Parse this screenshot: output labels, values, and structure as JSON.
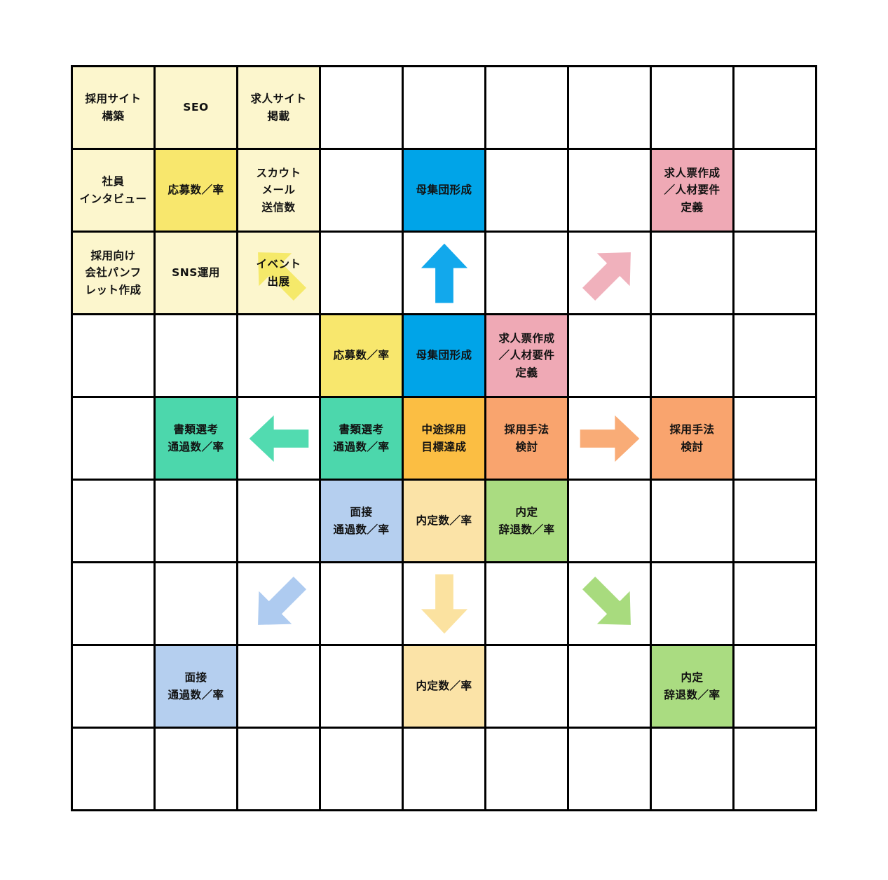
{
  "palette": {
    "background": "#FFFFFF",
    "grid_line": "#000000",
    "text": "#111111",
    "pale_yellow": "#FCF6CD",
    "yellow": "#F8E76D",
    "yellow_arrow": "#F5E96A",
    "blue": "#00A4E8",
    "blue_arrow": "#12A8EC",
    "pink": "#EFA9B5",
    "pink_arrow": "#F0B1BC",
    "teal": "#4CD7AC",
    "teal_arrow": "#52DBB0",
    "amber": "#FBBE43",
    "orange": "#F9A46E",
    "orange_arrow": "#F9AC77",
    "light_blue": "#B5CFEF",
    "light_blue_arrow": "#AECBF0",
    "cream": "#FBE3A7",
    "cream_arrow": "#FBE2A0",
    "light_green": "#AADC81",
    "light_green_arrow": "#A8DB7E"
  },
  "grid": {
    "rows": 9,
    "cols": 9,
    "cells": [
      {
        "r": 1,
        "c": 1,
        "label": "採用サイト\n構築",
        "fill": "pale_yellow"
      },
      {
        "r": 1,
        "c": 2,
        "label": "SEO",
        "fill": "pale_yellow"
      },
      {
        "r": 1,
        "c": 3,
        "label": "求人サイト\n掲載",
        "fill": "pale_yellow"
      },
      {
        "r": 2,
        "c": 1,
        "label": "社員\nインタビュー",
        "fill": "pale_yellow"
      },
      {
        "r": 2,
        "c": 2,
        "label": "応募数／率",
        "fill": "yellow"
      },
      {
        "r": 2,
        "c": 3,
        "label": "スカウト\nメール\n送信数",
        "fill": "pale_yellow"
      },
      {
        "r": 2,
        "c": 5,
        "label": "母集団形成",
        "fill": "blue"
      },
      {
        "r": 2,
        "c": 8,
        "label": "求人票作成\n／人材要件\n定義",
        "fill": "pink"
      },
      {
        "r": 3,
        "c": 1,
        "label": "採用向け\n会社パンフ\nレット作成",
        "fill": "pale_yellow"
      },
      {
        "r": 3,
        "c": 2,
        "label": "SNS運用",
        "fill": "pale_yellow"
      },
      {
        "r": 3,
        "c": 3,
        "label": "イベント\n出展",
        "fill": "pale_yellow",
        "arrow": {
          "dir": "up-left",
          "fill": "yellow_arrow"
        }
      },
      {
        "r": 3,
        "c": 5,
        "arrow": {
          "dir": "up",
          "fill": "blue_arrow"
        }
      },
      {
        "r": 3,
        "c": 7,
        "arrow": {
          "dir": "up-right",
          "fill": "pink_arrow"
        }
      },
      {
        "r": 4,
        "c": 4,
        "label": "応募数／率",
        "fill": "yellow"
      },
      {
        "r": 4,
        "c": 5,
        "label": "母集団形成",
        "fill": "blue"
      },
      {
        "r": 4,
        "c": 6,
        "label": "求人票作成\n／人材要件\n定義",
        "fill": "pink"
      },
      {
        "r": 5,
        "c": 2,
        "label": "書類選考\n通過数／率",
        "fill": "teal"
      },
      {
        "r": 5,
        "c": 3,
        "arrow": {
          "dir": "left",
          "fill": "teal_arrow"
        }
      },
      {
        "r": 5,
        "c": 4,
        "label": "書類選考\n通過数／率",
        "fill": "teal"
      },
      {
        "r": 5,
        "c": 5,
        "label": "中途採用\n目標達成",
        "fill": "amber"
      },
      {
        "r": 5,
        "c": 6,
        "label": "採用手法\n検討",
        "fill": "orange"
      },
      {
        "r": 5,
        "c": 7,
        "arrow": {
          "dir": "right",
          "fill": "orange_arrow"
        }
      },
      {
        "r": 5,
        "c": 8,
        "label": "採用手法\n検討",
        "fill": "orange"
      },
      {
        "r": 6,
        "c": 4,
        "label": "面接\n通過数／率",
        "fill": "light_blue"
      },
      {
        "r": 6,
        "c": 5,
        "label": "内定数／率",
        "fill": "cream"
      },
      {
        "r": 6,
        "c": 6,
        "label": "内定\n辞退数／率",
        "fill": "light_green"
      },
      {
        "r": 7,
        "c": 3,
        "arrow": {
          "dir": "down-left",
          "fill": "light_blue_arrow"
        }
      },
      {
        "r": 7,
        "c": 5,
        "arrow": {
          "dir": "down",
          "fill": "cream_arrow"
        }
      },
      {
        "r": 7,
        "c": 7,
        "arrow": {
          "dir": "down-right",
          "fill": "light_green_arrow"
        }
      },
      {
        "r": 8,
        "c": 2,
        "label": "面接\n通過数／率",
        "fill": "light_blue"
      },
      {
        "r": 8,
        "c": 5,
        "label": "内定数／率",
        "fill": "cream"
      },
      {
        "r": 8,
        "c": 8,
        "label": "内定\n辞退数／率",
        "fill": "light_green"
      }
    ]
  }
}
